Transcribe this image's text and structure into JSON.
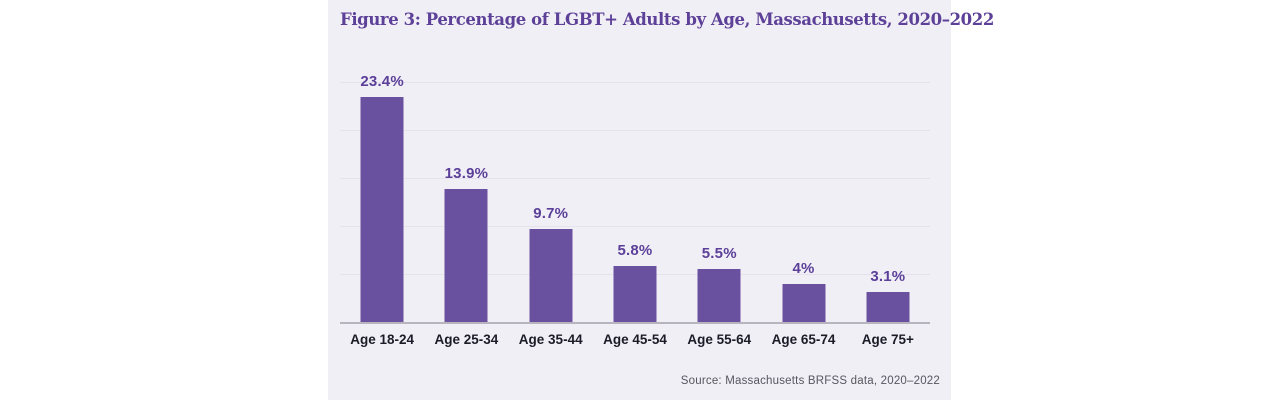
{
  "figure": {
    "title": "Figure 3: Percentage of LGBT+ Adults by Age, Massachusetts, 2020–2022",
    "source": "Source: Massachusetts BRFSS data, 2020–2022"
  },
  "colors": {
    "panel_bg": "#f1eff6",
    "bar": "#6a51a0",
    "value_label": "#5b3f99",
    "title": "#5d4198",
    "axis_label": "#1c1c28",
    "gridline": "#e5e2ec",
    "baseline": "#b7b4bf",
    "source_text": "#56565f"
  },
  "chart_data": {
    "type": "bar",
    "title": "Figure 3: Percentage of LGBT+ Adults by Age, Massachusetts, 2020–2022",
    "categories": [
      "Age 18-24",
      "Age 25-34",
      "Age 35-44",
      "Age 45-54",
      "Age 55-64",
      "Age 65-74",
      "Age 75+"
    ],
    "values": [
      23.4,
      13.9,
      9.7,
      5.8,
      5.5,
      4,
      3.1
    ],
    "value_labels": [
      "23.4%",
      "13.9%",
      "9.7%",
      "5.8%",
      "5.5%",
      "4%",
      "3.1%"
    ],
    "xlabel": "",
    "ylabel": "",
    "ylim": [
      0,
      25
    ],
    "gridline_values": [
      5,
      10,
      15,
      20,
      25
    ],
    "grid": true,
    "legend": false,
    "bar_orientation": "vertical",
    "source": "Source: Massachusetts BRFSS data, 2020–2022"
  }
}
